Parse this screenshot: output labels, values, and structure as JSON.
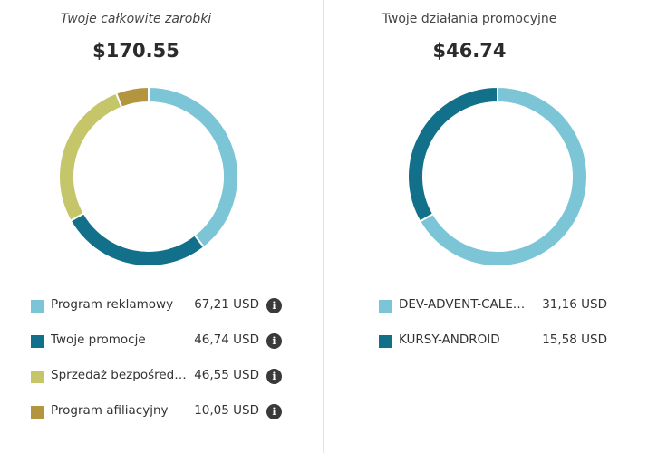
{
  "earnings": {
    "title": "Twoje całkowite zarobki",
    "total": "$170.55",
    "items": [
      {
        "label": "Program reklamowy",
        "value": "67,21 USD",
        "color": "#7bc5d6",
        "amount": 67.21,
        "info_icon": "info-icon"
      },
      {
        "label": "Twoje promocje",
        "value": "46,74 USD",
        "color": "#12708a",
        "amount": 46.74,
        "info_icon": "info-icon"
      },
      {
        "label": "Sprzedaż bezpośrednia",
        "value": "46,55 USD",
        "color": "#c5c56a",
        "amount": 46.55,
        "info_icon": "info-icon"
      },
      {
        "label": "Program afiliacyjny",
        "value": "10,05 USD",
        "color": "#b39540",
        "amount": 10.05,
        "info_icon": "info-icon"
      }
    ]
  },
  "promotions": {
    "title": "Twoje działania promocyjne",
    "total": "$46.74",
    "items": [
      {
        "label": "DEV-ADVENT-CALENDAR",
        "value": "31,16 USD",
        "color": "#7bc5d6",
        "amount": 31.16
      },
      {
        "label": "KURSY-ANDROID",
        "value": "15,58 USD",
        "color": "#12708a",
        "amount": 15.58
      }
    ]
  },
  "chart_data": [
    {
      "type": "pie",
      "title": "Twoje całkowite zarobki",
      "categories": [
        "Program reklamowy",
        "Twoje promocje",
        "Sprzedaż bezpośrednia",
        "Program afiliacyjny"
      ],
      "values": [
        67.21,
        46.74,
        46.55,
        10.05
      ]
    },
    {
      "type": "pie",
      "title": "Twoje działania promocyjne",
      "categories": [
        "DEV-ADVENT-CALENDAR",
        "KURSY-ANDROID"
      ],
      "values": [
        31.16,
        15.58
      ]
    }
  ]
}
